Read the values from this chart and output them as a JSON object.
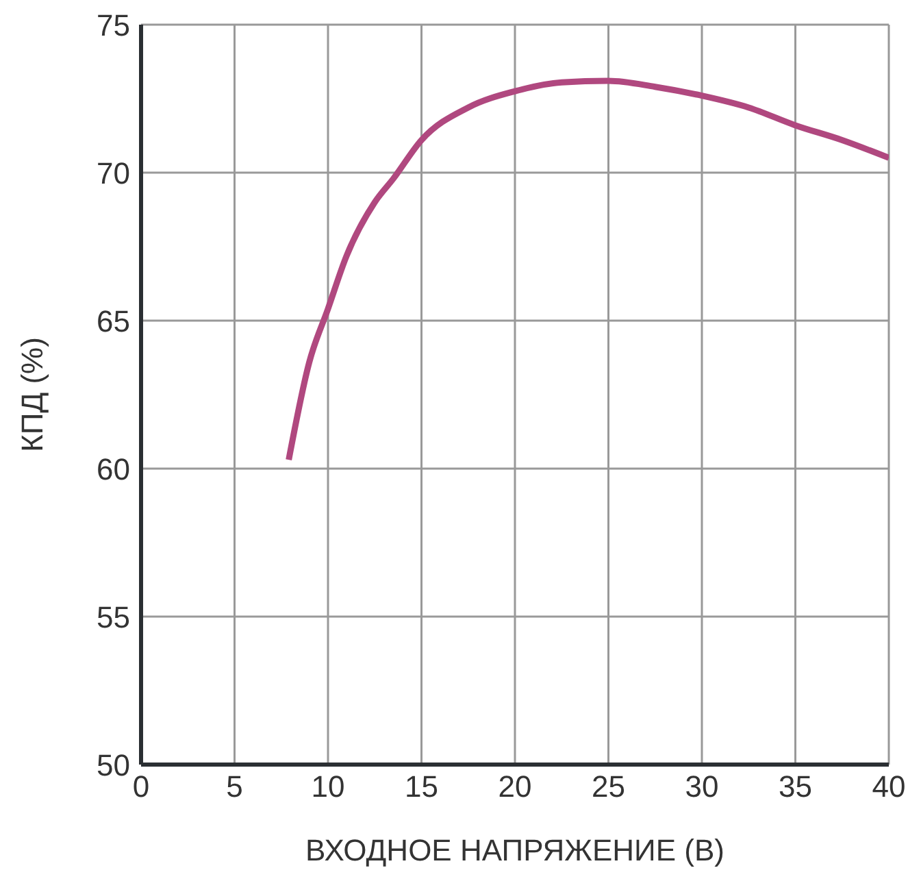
{
  "chart_data": {
    "type": "line",
    "xlabel": "ВХОДНОЕ НАПРЯЖЕНИЕ (В)",
    "ylabel": "КПД (%)",
    "xlim": [
      0,
      40
    ],
    "xticks": [
      0,
      5,
      10,
      15,
      20,
      25,
      30,
      35,
      40
    ],
    "ylim": [
      50,
      75
    ],
    "yticks": [
      50,
      55,
      60,
      65,
      70,
      75
    ],
    "grid": true,
    "marker": "none",
    "line_style": "solid",
    "series": [
      {
        "color": "#b0487f",
        "x": [
          7.9,
          9,
          10,
          11,
          12.5,
          13.5,
          15,
          17.5,
          20,
          22.5,
          25,
          27.5,
          30,
          32.5,
          35,
          37.5,
          40
        ],
        "values": [
          60.3,
          63.6,
          65.4,
          67.2,
          69.0,
          69.8,
          71.1,
          72.2,
          72.75,
          73.05,
          73.1,
          72.9,
          72.6,
          72.2,
          71.6,
          71.1,
          70.5
        ]
      }
    ]
  }
}
